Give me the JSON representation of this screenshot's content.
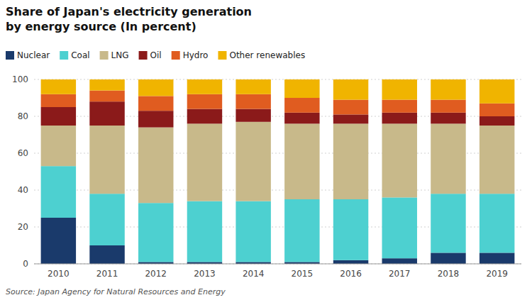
{
  "chart_data": {
    "type": "bar",
    "stacked": true,
    "title": "Share of Japan's electricity generation\nby energy source (In percent)",
    "annotations": [
      "Source: Japan Agency for Natural Resources and Energy"
    ],
    "categories": [
      "2010",
      "2011",
      "2012",
      "2013",
      "2014",
      "2015",
      "2016",
      "2017",
      "2018",
      "2019"
    ],
    "series": [
      {
        "name": "Nuclear",
        "color": "#1a3a6b",
        "values": [
          25,
          10,
          1,
          1,
          1,
          1,
          2,
          3,
          6,
          6
        ]
      },
      {
        "name": "Coal",
        "color": "#4dd0d0",
        "values": [
          28,
          28,
          32,
          33,
          33,
          34,
          33,
          33,
          32,
          32
        ]
      },
      {
        "name": "LNG",
        "color": "#c8b98a",
        "values": [
          22,
          37,
          41,
          42,
          43,
          41,
          41,
          40,
          38,
          37
        ]
      },
      {
        "name": "Oil",
        "color": "#8b1a1a",
        "values": [
          10,
          13,
          9,
          8,
          7,
          6,
          5,
          6,
          6,
          5
        ]
      },
      {
        "name": "Hydro",
        "color": "#e05c20",
        "values": [
          7,
          6,
          8,
          8,
          8,
          8,
          8,
          7,
          7,
          7
        ]
      },
      {
        "name": "Other renewables",
        "color": "#f0b400",
        "values": [
          8,
          6,
          9,
          8,
          8,
          10,
          11,
          11,
          11,
          13
        ]
      }
    ],
    "ylim": [
      0,
      100
    ],
    "yticks": [
      0,
      20,
      40,
      60,
      80,
      100
    ],
    "grid": true,
    "legend": "top"
  }
}
